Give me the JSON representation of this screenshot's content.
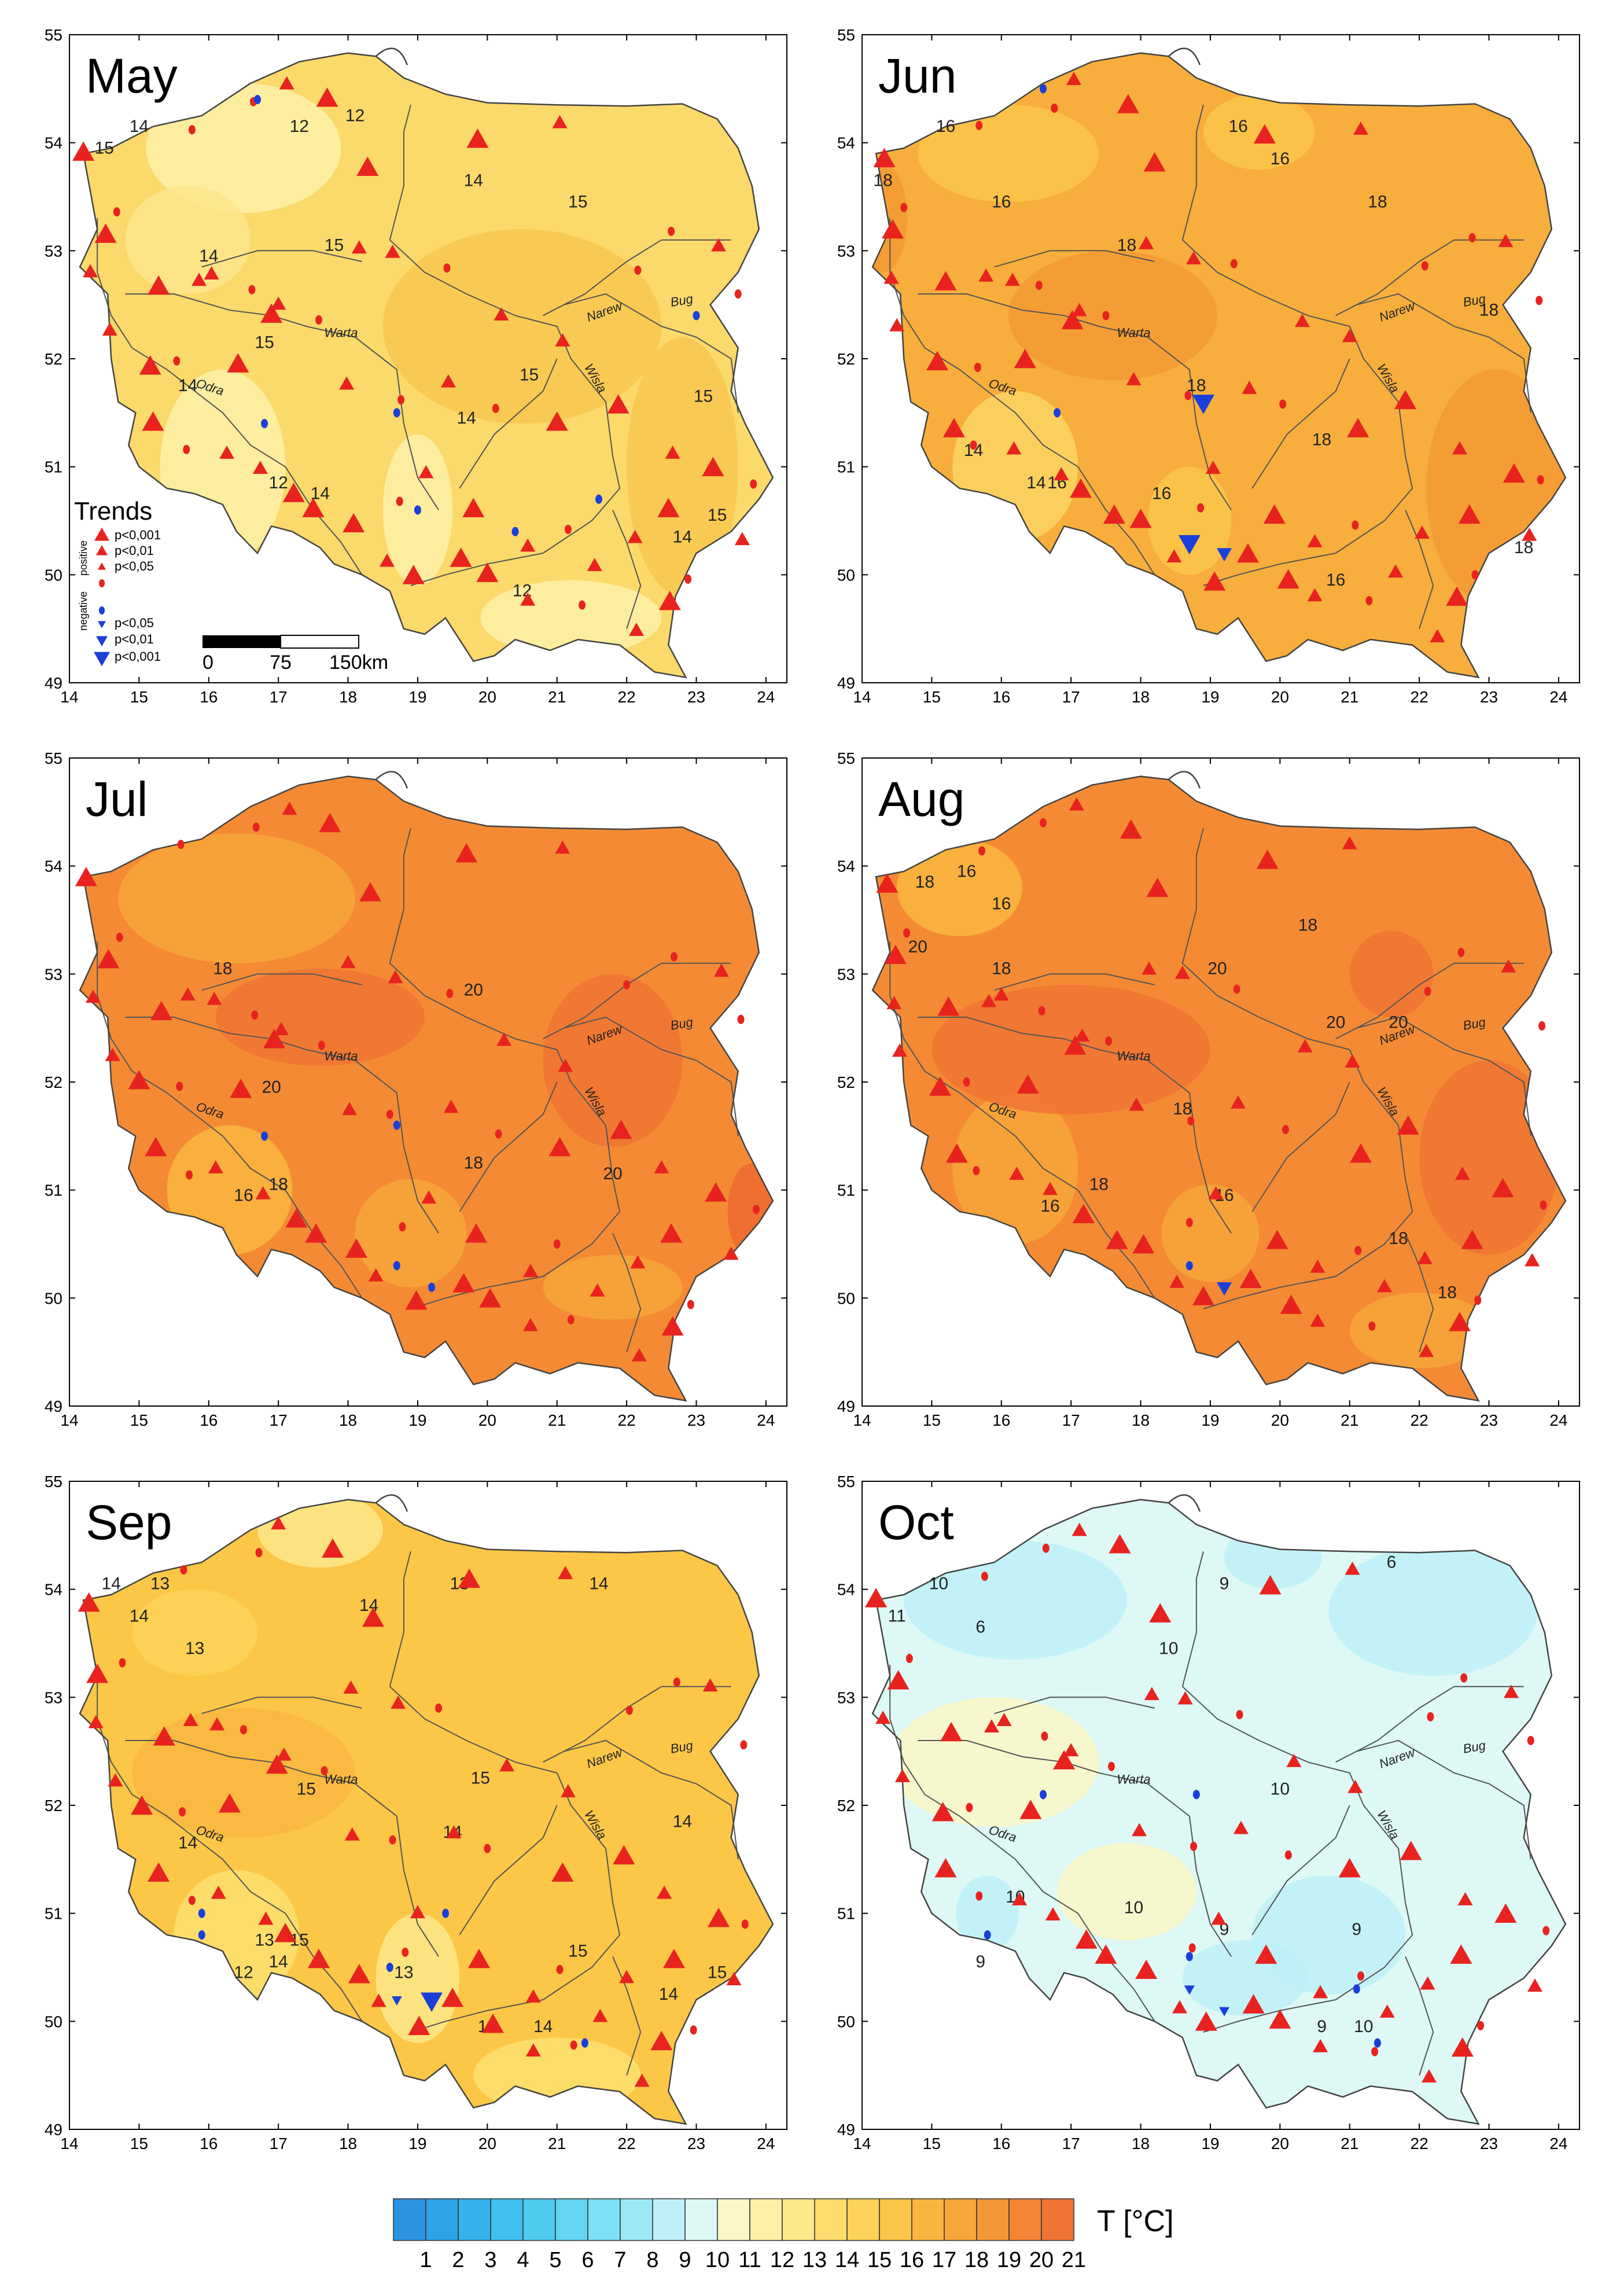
{
  "panels": [
    {
      "title": "May",
      "isolines": [
        {
          "t": "12",
          "lon": 17.3,
          "lat": 54.1
        },
        {
          "t": "12",
          "lon": 18.1,
          "lat": 54.2
        },
        {
          "t": "14",
          "lon": 15.0,
          "lat": 54.1
        },
        {
          "t": "15",
          "lon": 14.5,
          "lat": 53.9
        },
        {
          "t": "14",
          "lon": 19.8,
          "lat": 53.6
        },
        {
          "t": "15",
          "lon": 21.3,
          "lat": 53.4
        },
        {
          "t": "15",
          "lon": 17.8,
          "lat": 53.0
        },
        {
          "t": "14",
          "lon": 16.0,
          "lat": 52.9
        },
        {
          "t": "15",
          "lon": 16.8,
          "lat": 52.1
        },
        {
          "t": "14",
          "lon": 15.7,
          "lat": 51.7
        },
        {
          "t": "15",
          "lon": 20.6,
          "lat": 51.8
        },
        {
          "t": "14",
          "lon": 19.7,
          "lat": 51.4
        },
        {
          "t": "12",
          "lon": 17.0,
          "lat": 50.8
        },
        {
          "t": "14",
          "lon": 17.6,
          "lat": 50.7
        },
        {
          "t": "12",
          "lon": 20.5,
          "lat": 49.8
        },
        {
          "t": "14",
          "lon": 22.8,
          "lat": 50.3
        },
        {
          "t": "15",
          "lon": 23.3,
          "lat": 50.5
        },
        {
          "t": "15",
          "lon": 23.1,
          "lat": 51.6
        }
      ]
    },
    {
      "title": "Jun",
      "isolines": [
        {
          "t": "16",
          "lon": 15.2,
          "lat": 54.1
        },
        {
          "t": "18",
          "lon": 14.3,
          "lat": 53.6
        },
        {
          "t": "16",
          "lon": 16.0,
          "lat": 53.4
        },
        {
          "t": "18",
          "lon": 17.8,
          "lat": 53.0
        },
        {
          "t": "16",
          "lon": 19.4,
          "lat": 54.1
        },
        {
          "t": "16",
          "lon": 20.0,
          "lat": 53.8
        },
        {
          "t": "18",
          "lon": 21.4,
          "lat": 53.4
        },
        {
          "t": "18",
          "lon": 23.0,
          "lat": 52.4
        },
        {
          "t": "18",
          "lon": 18.8,
          "lat": 51.7
        },
        {
          "t": "18",
          "lon": 20.6,
          "lat": 51.2
        },
        {
          "t": "14",
          "lon": 15.6,
          "lat": 51.1
        },
        {
          "t": "14",
          "lon": 16.5,
          "lat": 50.8
        },
        {
          "t": "16",
          "lon": 16.8,
          "lat": 50.8
        },
        {
          "t": "16",
          "lon": 18.3,
          "lat": 50.7
        },
        {
          "t": "16",
          "lon": 20.8,
          "lat": 49.9
        },
        {
          "t": "18",
          "lon": 23.5,
          "lat": 50.2
        }
      ]
    },
    {
      "title": "Jul",
      "isolines": [
        {
          "t": "18",
          "lon": 16.2,
          "lat": 53.0
        },
        {
          "t": "20",
          "lon": 19.8,
          "lat": 52.8
        },
        {
          "t": "20",
          "lon": 16.9,
          "lat": 51.9
        },
        {
          "t": "18",
          "lon": 17.0,
          "lat": 51.0
        },
        {
          "t": "16",
          "lon": 16.5,
          "lat": 50.9
        },
        {
          "t": "18",
          "lon": 19.8,
          "lat": 51.2
        },
        {
          "t": "20",
          "lon": 21.8,
          "lat": 51.1
        }
      ]
    },
    {
      "title": "Aug",
      "isolines": [
        {
          "t": "18",
          "lon": 14.9,
          "lat": 53.8
        },
        {
          "t": "16",
          "lon": 15.5,
          "lat": 53.9
        },
        {
          "t": "20",
          "lon": 14.8,
          "lat": 53.2
        },
        {
          "t": "16",
          "lon": 16.0,
          "lat": 53.6
        },
        {
          "t": "18",
          "lon": 16.0,
          "lat": 53.0
        },
        {
          "t": "18",
          "lon": 20.4,
          "lat": 53.4
        },
        {
          "t": "20",
          "lon": 19.1,
          "lat": 53.0
        },
        {
          "t": "20",
          "lon": 20.8,
          "lat": 52.5
        },
        {
          "t": "20",
          "lon": 21.7,
          "lat": 52.5
        },
        {
          "t": "18",
          "lon": 18.6,
          "lat": 51.7
        },
        {
          "t": "18",
          "lon": 17.4,
          "lat": 51.0
        },
        {
          "t": "16",
          "lon": 16.7,
          "lat": 50.8
        },
        {
          "t": "16",
          "lon": 19.2,
          "lat": 50.9
        },
        {
          "t": "18",
          "lon": 21.7,
          "lat": 50.5
        },
        {
          "t": "18",
          "lon": 22.4,
          "lat": 50.0
        }
      ]
    },
    {
      "title": "Sep",
      "isolines": [
        {
          "t": "14",
          "lon": 14.6,
          "lat": 54.0
        },
        {
          "t": "13",
          "lon": 15.3,
          "lat": 54.0
        },
        {
          "t": "14",
          "lon": 15.0,
          "lat": 53.7
        },
        {
          "t": "13",
          "lon": 15.8,
          "lat": 53.4
        },
        {
          "t": "14",
          "lon": 18.3,
          "lat": 53.8
        },
        {
          "t": "13",
          "lon": 19.6,
          "lat": 54.0
        },
        {
          "t": "14",
          "lon": 21.6,
          "lat": 54.0
        },
        {
          "t": "15",
          "lon": 17.4,
          "lat": 52.1
        },
        {
          "t": "15",
          "lon": 19.9,
          "lat": 52.2
        },
        {
          "t": "14",
          "lon": 15.7,
          "lat": 51.6
        },
        {
          "t": "14",
          "lon": 19.5,
          "lat": 51.7
        },
        {
          "t": "13",
          "lon": 16.8,
          "lat": 50.7
        },
        {
          "t": "12",
          "lon": 16.5,
          "lat": 50.4
        },
        {
          "t": "14",
          "lon": 17.0,
          "lat": 50.5
        },
        {
          "t": "15",
          "lon": 17.3,
          "lat": 50.7
        },
        {
          "t": "13",
          "lon": 18.8,
          "lat": 50.4
        },
        {
          "t": "13",
          "lon": 20.0,
          "lat": 49.9
        },
        {
          "t": "14",
          "lon": 20.8,
          "lat": 49.9
        },
        {
          "t": "15",
          "lon": 21.3,
          "lat": 50.6
        },
        {
          "t": "14",
          "lon": 22.6,
          "lat": 50.2
        },
        {
          "t": "15",
          "lon": 23.3,
          "lat": 50.4
        },
        {
          "t": "14",
          "lon": 22.8,
          "lat": 51.8
        }
      ]
    },
    {
      "title": "Oct",
      "isolines": [
        {
          "t": "10",
          "lon": 15.1,
          "lat": 54.0
        },
        {
          "t": "6",
          "lon": 15.7,
          "lat": 53.6
        },
        {
          "t": "11",
          "lon": 14.5,
          "lat": 53.7
        },
        {
          "t": "10",
          "lon": 18.4,
          "lat": 53.4
        },
        {
          "t": "9",
          "lon": 19.2,
          "lat": 54.0
        },
        {
          "t": "6",
          "lon": 21.6,
          "lat": 54.2
        },
        {
          "t": "10",
          "lon": 20.0,
          "lat": 52.1
        },
        {
          "t": "10",
          "lon": 16.2,
          "lat": 51.1
        },
        {
          "t": "10",
          "lon": 17.9,
          "lat": 51.0
        },
        {
          "t": "9",
          "lon": 15.7,
          "lat": 50.5
        },
        {
          "t": "9",
          "lon": 19.2,
          "lat": 50.8
        },
        {
          "t": "9",
          "lon": 21.1,
          "lat": 50.8
        },
        {
          "t": "9",
          "lon": 20.6,
          "lat": 49.9
        },
        {
          "t": "10",
          "lon": 21.2,
          "lat": 49.9
        }
      ]
    }
  ],
  "axes": {
    "lon_ticks": [
      "14",
      "15",
      "16",
      "17",
      "18",
      "19",
      "20",
      "21",
      "22",
      "23",
      "24"
    ],
    "lat_ticks": [
      "49",
      "50",
      "51",
      "52",
      "53",
      "54",
      "55"
    ]
  },
  "rivers": {
    "warta": "Warta",
    "odra": "Odra",
    "wisla": "Wisla",
    "narew": "Narew",
    "bug": "Bug"
  },
  "trends_legend": {
    "title": "Trends",
    "positive_label": "positive",
    "negative_label": "negative",
    "positive": [
      "p<0,001",
      "p<0,01",
      "p<0,05"
    ],
    "negative": [
      "p<0,05",
      "p<0,01",
      "p<0,001"
    ]
  },
  "scalebar": {
    "labels": [
      "0",
      "75",
      "150km"
    ]
  },
  "colorbar": {
    "title": "T [°C]",
    "labels": [
      "1",
      "2",
      "3",
      "4",
      "5",
      "6",
      "7",
      "8",
      "9",
      "10",
      "11",
      "12",
      "13",
      "14",
      "15",
      "16",
      "17",
      "18",
      "19",
      "20",
      "21"
    ],
    "colors": [
      "#2a93e4",
      "#2ea3e8",
      "#36b2ec",
      "#3fc0ef",
      "#4fcbf0",
      "#62d6f2",
      "#7de0f4",
      "#9ce9f6",
      "#bdf1f7",
      "#ddf8f5",
      "#fbf7c6",
      "#fdf0a4",
      "#fde88a",
      "#fddd6e",
      "#fdd258",
      "#fbc548",
      "#f9b63f",
      "#f7a63a",
      "#f59637",
      "#f38535",
      "#f07434"
    ],
    "positive_color": "#e8231f",
    "negative_color": "#1b3fd9"
  }
}
